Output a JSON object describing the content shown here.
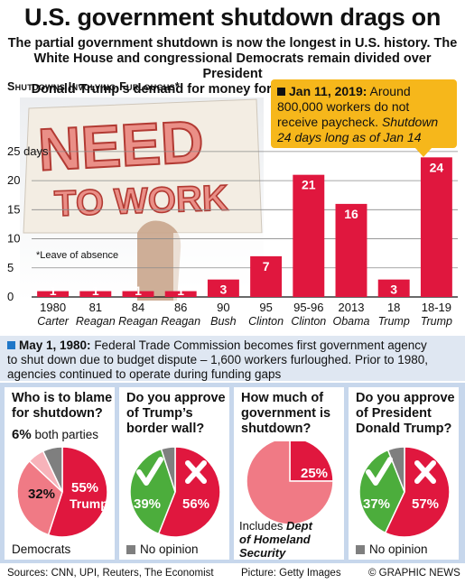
{
  "header": {
    "title": "U.S. government shutdown drags on",
    "subtitle_line1": "The partial government shutdown is now the longest in U.S. history. The",
    "subtitle_line2": "White House and congressional Democrats remain divided over President",
    "subtitle_line3": "Donald Trump’s demand for money for a border wall with Mexico"
  },
  "chart_data": {
    "type": "bar",
    "title": "Shutdowns Involving Furloughs*",
    "ylabel": "days",
    "ylim": [
      0,
      27
    ],
    "yticks": [
      0,
      5,
      10,
      15,
      20,
      25
    ],
    "ytick_labels": [
      "0",
      "5",
      "10",
      "15",
      "20",
      "25 days"
    ],
    "categories": [
      "1980",
      "81",
      "84",
      "86",
      "90",
      "95",
      "95-96",
      "2013",
      "18",
      "18-19"
    ],
    "presidents": [
      "Carter",
      "Reagan",
      "Reagan",
      "Reagan",
      "Bush",
      "Clinton",
      "Clinton",
      "Obama",
      "Trump",
      "Trump"
    ],
    "values": [
      1,
      1,
      1,
      1,
      3,
      7,
      21,
      16,
      3,
      24
    ],
    "bar_color": "#e0173e",
    "footnote": "*Leave of absence"
  },
  "photo": {
    "sign_line1": "NEED",
    "sign_line2": "TO WORK"
  },
  "callout": {
    "date": "Jan 11, 2019:",
    "text1": " Around",
    "text2": "800,000 workers do not",
    "text3": "receive paycheck. ",
    "text3_italic": "Shutdown",
    "text4_italic": "24 days long as of Jan 14"
  },
  "info": {
    "date": "May 1, 1980:",
    "line1": " Federal Trade Commission becomes first government agency",
    "line2": "to shut down due to budget dispute – 1,600 workers furloughed. Prior to 1980,",
    "line3": "agencies continued to operate during funding gaps"
  },
  "polls": [
    {
      "q1": "Who is to blame",
      "q2": "for shutdown?",
      "note_value": "6%",
      "note_text": " both parties",
      "slices": [
        {
          "label": "Trump",
          "value": 55,
          "color": "#e0173e"
        },
        {
          "label": "Democrats",
          "value": 32,
          "color": "#f07a85"
        },
        {
          "label": "both parties",
          "value": 6,
          "color": "#f7b3ba"
        },
        {
          "label": "other",
          "value": 7,
          "color": "#7f7f7f"
        }
      ],
      "main_pct": "55%",
      "main_label": "Trump",
      "second_pct": "32%",
      "bottom_label": "Democrats"
    },
    {
      "q1": "Do you approve",
      "q2": "of Trump’s",
      "q3": "border wall?",
      "yes_pct": "39%",
      "no_pct": "56%",
      "slices": [
        {
          "label": "No",
          "value": 56,
          "color": "#e0173e"
        },
        {
          "label": "Yes",
          "value": 39,
          "color": "#4cad3c"
        },
        {
          "label": "No opinion",
          "value": 5,
          "color": "#7f7f7f"
        }
      ],
      "legend": "No opinion"
    },
    {
      "q1": "How much of",
      "q2": "government is",
      "q3": "shutdown?",
      "pct": "25%",
      "slices": [
        {
          "label": "Shut down",
          "value": 25,
          "color": "#e0173e"
        },
        {
          "label": "Open",
          "value": 75,
          "color": "#f07a85"
        }
      ],
      "note1": "Includes ",
      "note1_bold": "Dept",
      "note2": "of Homeland",
      "note3": "Security"
    },
    {
      "q1": "Do you approve",
      "q2": "of President",
      "q3": "Donald Trump?",
      "yes_pct": "37%",
      "no_pct": "57%",
      "slices": [
        {
          "label": "No",
          "value": 57,
          "color": "#e0173e"
        },
        {
          "label": "Yes",
          "value": 37,
          "color": "#4cad3c"
        },
        {
          "label": "No opinion",
          "value": 6,
          "color": "#7f7f7f"
        }
      ],
      "legend": "No opinion"
    }
  ],
  "footer": {
    "sources": "Sources: CNN, UPI, Reuters, The Economist",
    "picture": "Picture: Getty Images",
    "credit": "© GRAPHIC NEWS"
  }
}
